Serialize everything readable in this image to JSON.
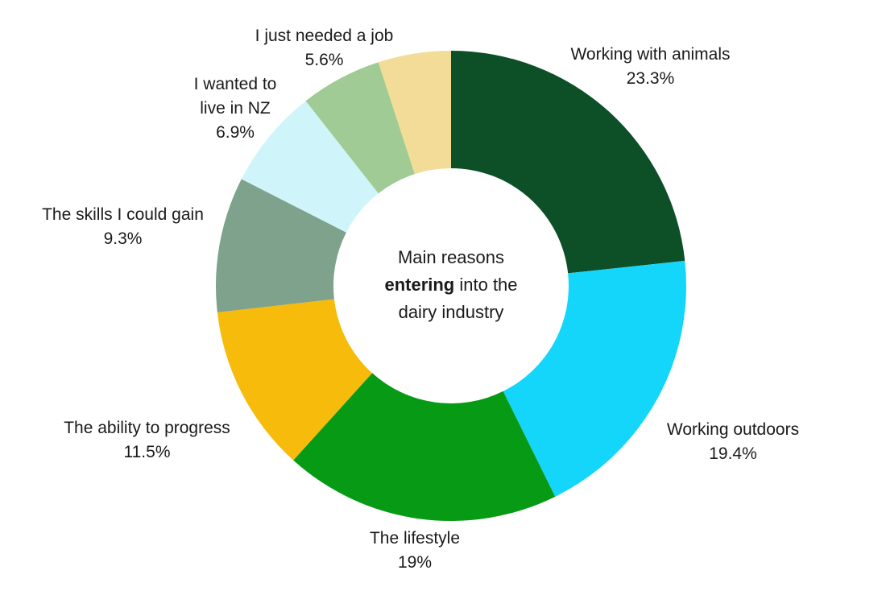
{
  "chart_data": {
    "type": "pie",
    "donut": true,
    "center_label": {
      "line1": "Main reasons",
      "line2_bold": "entering",
      "line2_rest": " into the",
      "line3": "dairy industry"
    },
    "slices": [
      {
        "label_lines": [
          "Working with animals"
        ],
        "value_text": "23.3%",
        "value": 23.3,
        "color": "#0d4f27"
      },
      {
        "label_lines": [
          "Working outdoors"
        ],
        "value_text": "19.4%",
        "value": 19.4,
        "color": "#13d6fa"
      },
      {
        "label_lines": [
          "The lifestyle"
        ],
        "value_text": "19%",
        "value": 19.0,
        "color": "#079a14"
      },
      {
        "label_lines": [
          "The ability to progress"
        ],
        "value_text": "11.5%",
        "value": 11.5,
        "color": "#f7bb0b"
      },
      {
        "label_lines": [
          "The skills I could gain"
        ],
        "value_text": "9.3%",
        "value": 9.3,
        "color": "#7fa28c"
      },
      {
        "label_lines": [
          "I wanted to",
          "live in NZ"
        ],
        "value_text": "6.9%",
        "value": 6.9,
        "color": "#cff5fb"
      },
      {
        "label_lines": [
          "I just needed a job"
        ],
        "value_text": "5.6%",
        "value": 5.6,
        "color": "#a0cb94"
      },
      {
        "label_lines": [],
        "value_text": "",
        "value": 5.0,
        "color": "#f3dc97"
      }
    ]
  }
}
